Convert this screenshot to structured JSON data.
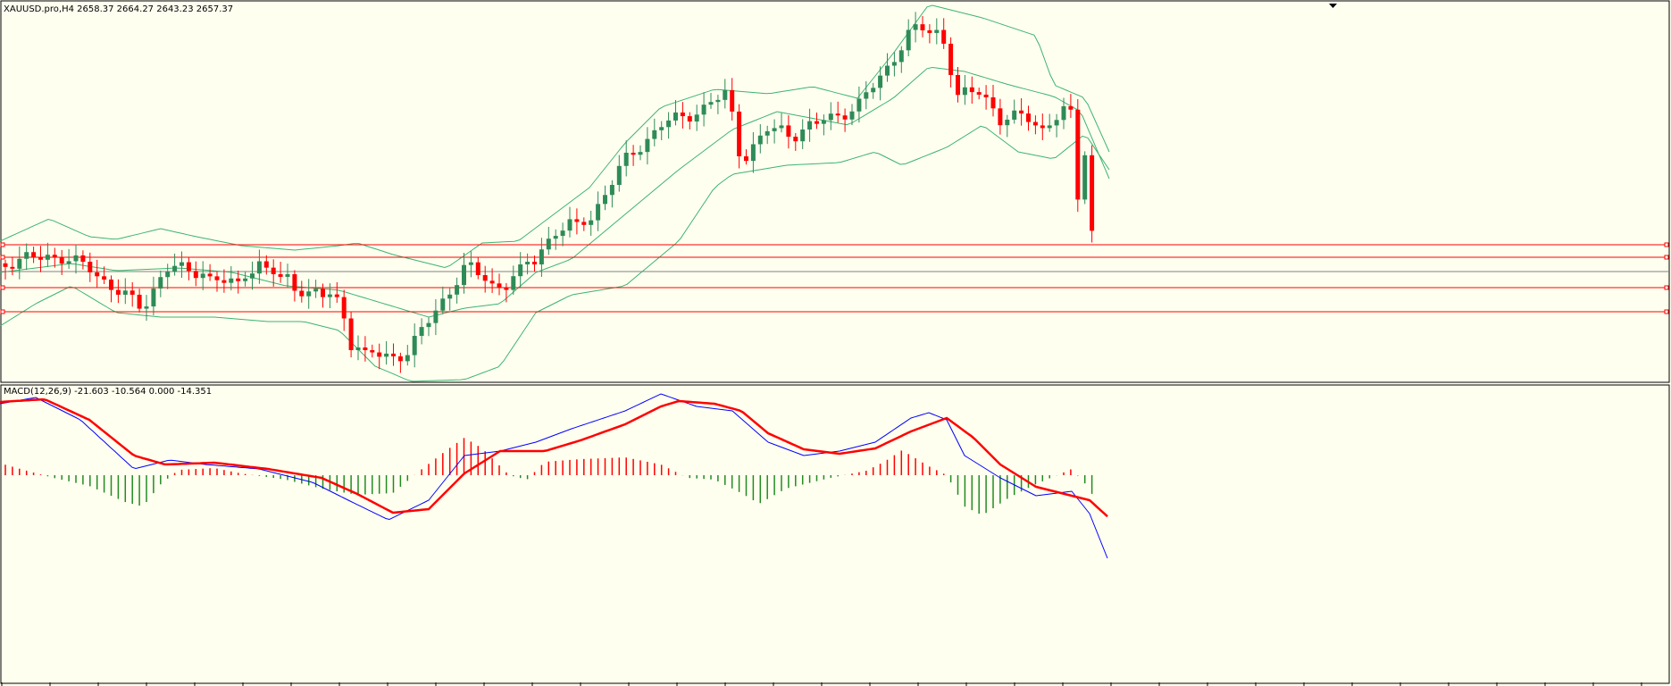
{
  "header": {
    "symbol_info": "XAUUSD.pro,H4  2658.37 2664.27 2643.23 2657.37",
    "indicator_info": "MACD(12,26,9) -21.603 -10.564 0.000 -14.351"
  },
  "colors": {
    "background": "#fffff0",
    "bull_candle": "#2e8b57",
    "bear_candle": "#ff0000",
    "bollinger": "#3cb371",
    "level_line": "#ff0000",
    "current_price_line": "#808080",
    "macd_line": "#0000ff",
    "signal_line": "#ff0000",
    "histogram_positive": "#ff0000",
    "histogram_negative": "#228b22"
  },
  "chart_data": [
    {
      "type": "candlestick",
      "title": "XAUUSD.pro,H4",
      "last_bar": {
        "open": 2658.37,
        "high": 2664.27,
        "low": 2643.23,
        "close": 2657.37
      },
      "overlays": [
        "Bollinger Bands"
      ],
      "horizontal_levels": 4,
      "ohlc_source": "plotted"
    },
    {
      "type": "line",
      "title": "MACD(12,26,9)",
      "values": {
        "main": -21.603,
        "signal": -10.564,
        "zero": 0.0,
        "histogram": -14.351
      },
      "series": [
        {
          "name": "MACD",
          "color": "#0000ff"
        },
        {
          "name": "Signal",
          "color": "#ff0000"
        }
      ]
    }
  ]
}
